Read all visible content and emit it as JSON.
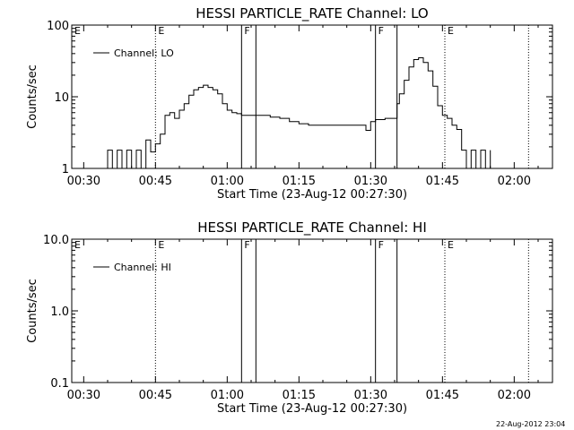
{
  "timestamp": "22-Aug-2012 23:04",
  "chart_data": [
    {
      "type": "line",
      "title": "HESSI PARTICLE_RATE Channel: LO",
      "xlabel": "Start Time (23-Aug-12 00:27:30)",
      "ylabel": "Counts/sec",
      "y_scale": "log",
      "ylim": [
        1,
        100
      ],
      "xlim": [
        "00:27:30",
        "02:08:00"
      ],
      "x_ticks": [
        "00:30",
        "00:45",
        "01:00",
        "01:15",
        "01:30",
        "01:45",
        "02:00"
      ],
      "y_ticks": [
        "1",
        "10",
        "100"
      ],
      "legend": {
        "placement": "top-left",
        "entries": [
          "Channel: LO"
        ]
      },
      "flag_markers": [
        {
          "label": "E",
          "time": "00:27:30",
          "style": "dotted"
        },
        {
          "label": "E",
          "time": "00:45:00",
          "style": "dotted"
        },
        {
          "label": "F",
          "time": "01:03:00",
          "style": "solid"
        },
        {
          "label": "",
          "time": "01:06:00",
          "style": "solid"
        },
        {
          "label": "F",
          "time": "01:31:00",
          "style": "solid"
        },
        {
          "label": "",
          "time": "01:35:30",
          "style": "solid"
        },
        {
          "label": "E",
          "time": "01:45:30",
          "style": "dotted"
        },
        {
          "label": "",
          "time": "02:03:00",
          "style": "dotted"
        }
      ],
      "series": [
        {
          "name": "Channel: LO",
          "points": [
            [
              "00:33:00",
              1
            ],
            [
              "00:35:00",
              1.8
            ],
            [
              "00:36:00",
              1
            ],
            [
              "00:37:00",
              1.8
            ],
            [
              "00:38:00",
              1
            ],
            [
              "00:39:00",
              1.8
            ],
            [
              "00:40:00",
              1
            ],
            [
              "00:41:00",
              1.8
            ],
            [
              "00:42:00",
              1
            ],
            [
              "00:43:00",
              2.5
            ],
            [
              "00:44:00",
              1.7
            ],
            [
              "00:45:00",
              2.2
            ],
            [
              "00:46:00",
              3.0
            ],
            [
              "00:47:00",
              5.5
            ],
            [
              "00:48:00",
              6.0
            ],
            [
              "00:49:00",
              5.0
            ],
            [
              "00:50:00",
              6.5
            ],
            [
              "00:51:00",
              8.0
            ],
            [
              "00:52:00",
              10.5
            ],
            [
              "00:53:00",
              12.5
            ],
            [
              "00:54:00",
              13.5
            ],
            [
              "00:55:00",
              14.5
            ],
            [
              "00:56:00",
              13.5
            ],
            [
              "00:57:00",
              12.5
            ],
            [
              "00:58:00",
              11.0
            ],
            [
              "00:59:00",
              8.0
            ],
            [
              "01:00:00",
              6.5
            ],
            [
              "01:01:00",
              6.0
            ],
            [
              "01:02:00",
              5.8
            ],
            [
              "01:03:00",
              5.5
            ],
            [
              "01:05:00",
              5.5
            ],
            [
              "01:07:00",
              5.5
            ],
            [
              "01:09:00",
              5.2
            ],
            [
              "01:11:00",
              5.0
            ],
            [
              "01:13:00",
              4.5
            ],
            [
              "01:15:00",
              4.2
            ],
            [
              "01:17:00",
              4.0
            ],
            [
              "01:20:00",
              4.0
            ],
            [
              "01:23:00",
              4.0
            ],
            [
              "01:26:00",
              4.0
            ],
            [
              "01:28:00",
              4.0
            ],
            [
              "01:29:00",
              3.4
            ],
            [
              "01:30:00",
              4.5
            ],
            [
              "01:31:00",
              4.8
            ],
            [
              "01:33:00",
              5.0
            ],
            [
              "01:35:00",
              5.0
            ],
            [
              "01:35:30",
              8.0
            ],
            [
              "01:36:00",
              11.0
            ],
            [
              "01:37:00",
              17.0
            ],
            [
              "01:38:00",
              26.0
            ],
            [
              "01:39:00",
              33.0
            ],
            [
              "01:40:00",
              35.0
            ],
            [
              "01:41:00",
              30.0
            ],
            [
              "01:42:00",
              23.0
            ],
            [
              "01:43:00",
              14.0
            ],
            [
              "01:44:00",
              7.5
            ],
            [
              "01:45:00",
              5.5
            ],
            [
              "01:46:00",
              5.0
            ],
            [
              "01:47:00",
              4.0
            ],
            [
              "01:48:00",
              3.5
            ],
            [
              "01:49:00",
              1.8
            ],
            [
              "01:50:00",
              1.0
            ],
            [
              "01:51:00",
              1.8
            ],
            [
              "01:52:00",
              1.0
            ],
            [
              "01:53:00",
              1.8
            ],
            [
              "01:54:00",
              1.0
            ],
            [
              "01:55:00",
              1.8
            ]
          ]
        }
      ]
    },
    {
      "type": "line",
      "title": "HESSI PARTICLE_RATE Channel: HI",
      "xlabel": "Start Time (23-Aug-12 00:27:30)",
      "ylabel": "Counts/sec",
      "y_scale": "log",
      "ylim": [
        0.1,
        10.0
      ],
      "xlim": [
        "00:27:30",
        "02:08:00"
      ],
      "x_ticks": [
        "00:30",
        "00:45",
        "01:00",
        "01:15",
        "01:30",
        "01:45",
        "02:00"
      ],
      "y_ticks": [
        "0.1",
        "1.0",
        "10.0"
      ],
      "legend": {
        "placement": "top-left",
        "entries": [
          "Channel: HI"
        ]
      },
      "flag_markers": [
        {
          "label": "E",
          "time": "00:27:30",
          "style": "dotted"
        },
        {
          "label": "E",
          "time": "00:45:00",
          "style": "dotted"
        },
        {
          "label": "F",
          "time": "01:03:00",
          "style": "solid"
        },
        {
          "label": "",
          "time": "01:06:00",
          "style": "solid"
        },
        {
          "label": "F",
          "time": "01:31:00",
          "style": "solid"
        },
        {
          "label": "",
          "time": "01:35:30",
          "style": "solid"
        },
        {
          "label": "E",
          "time": "01:45:30",
          "style": "dotted"
        },
        {
          "label": "",
          "time": "02:03:00",
          "style": "dotted"
        }
      ],
      "series": [
        {
          "name": "Channel: HI",
          "points": []
        }
      ]
    }
  ]
}
